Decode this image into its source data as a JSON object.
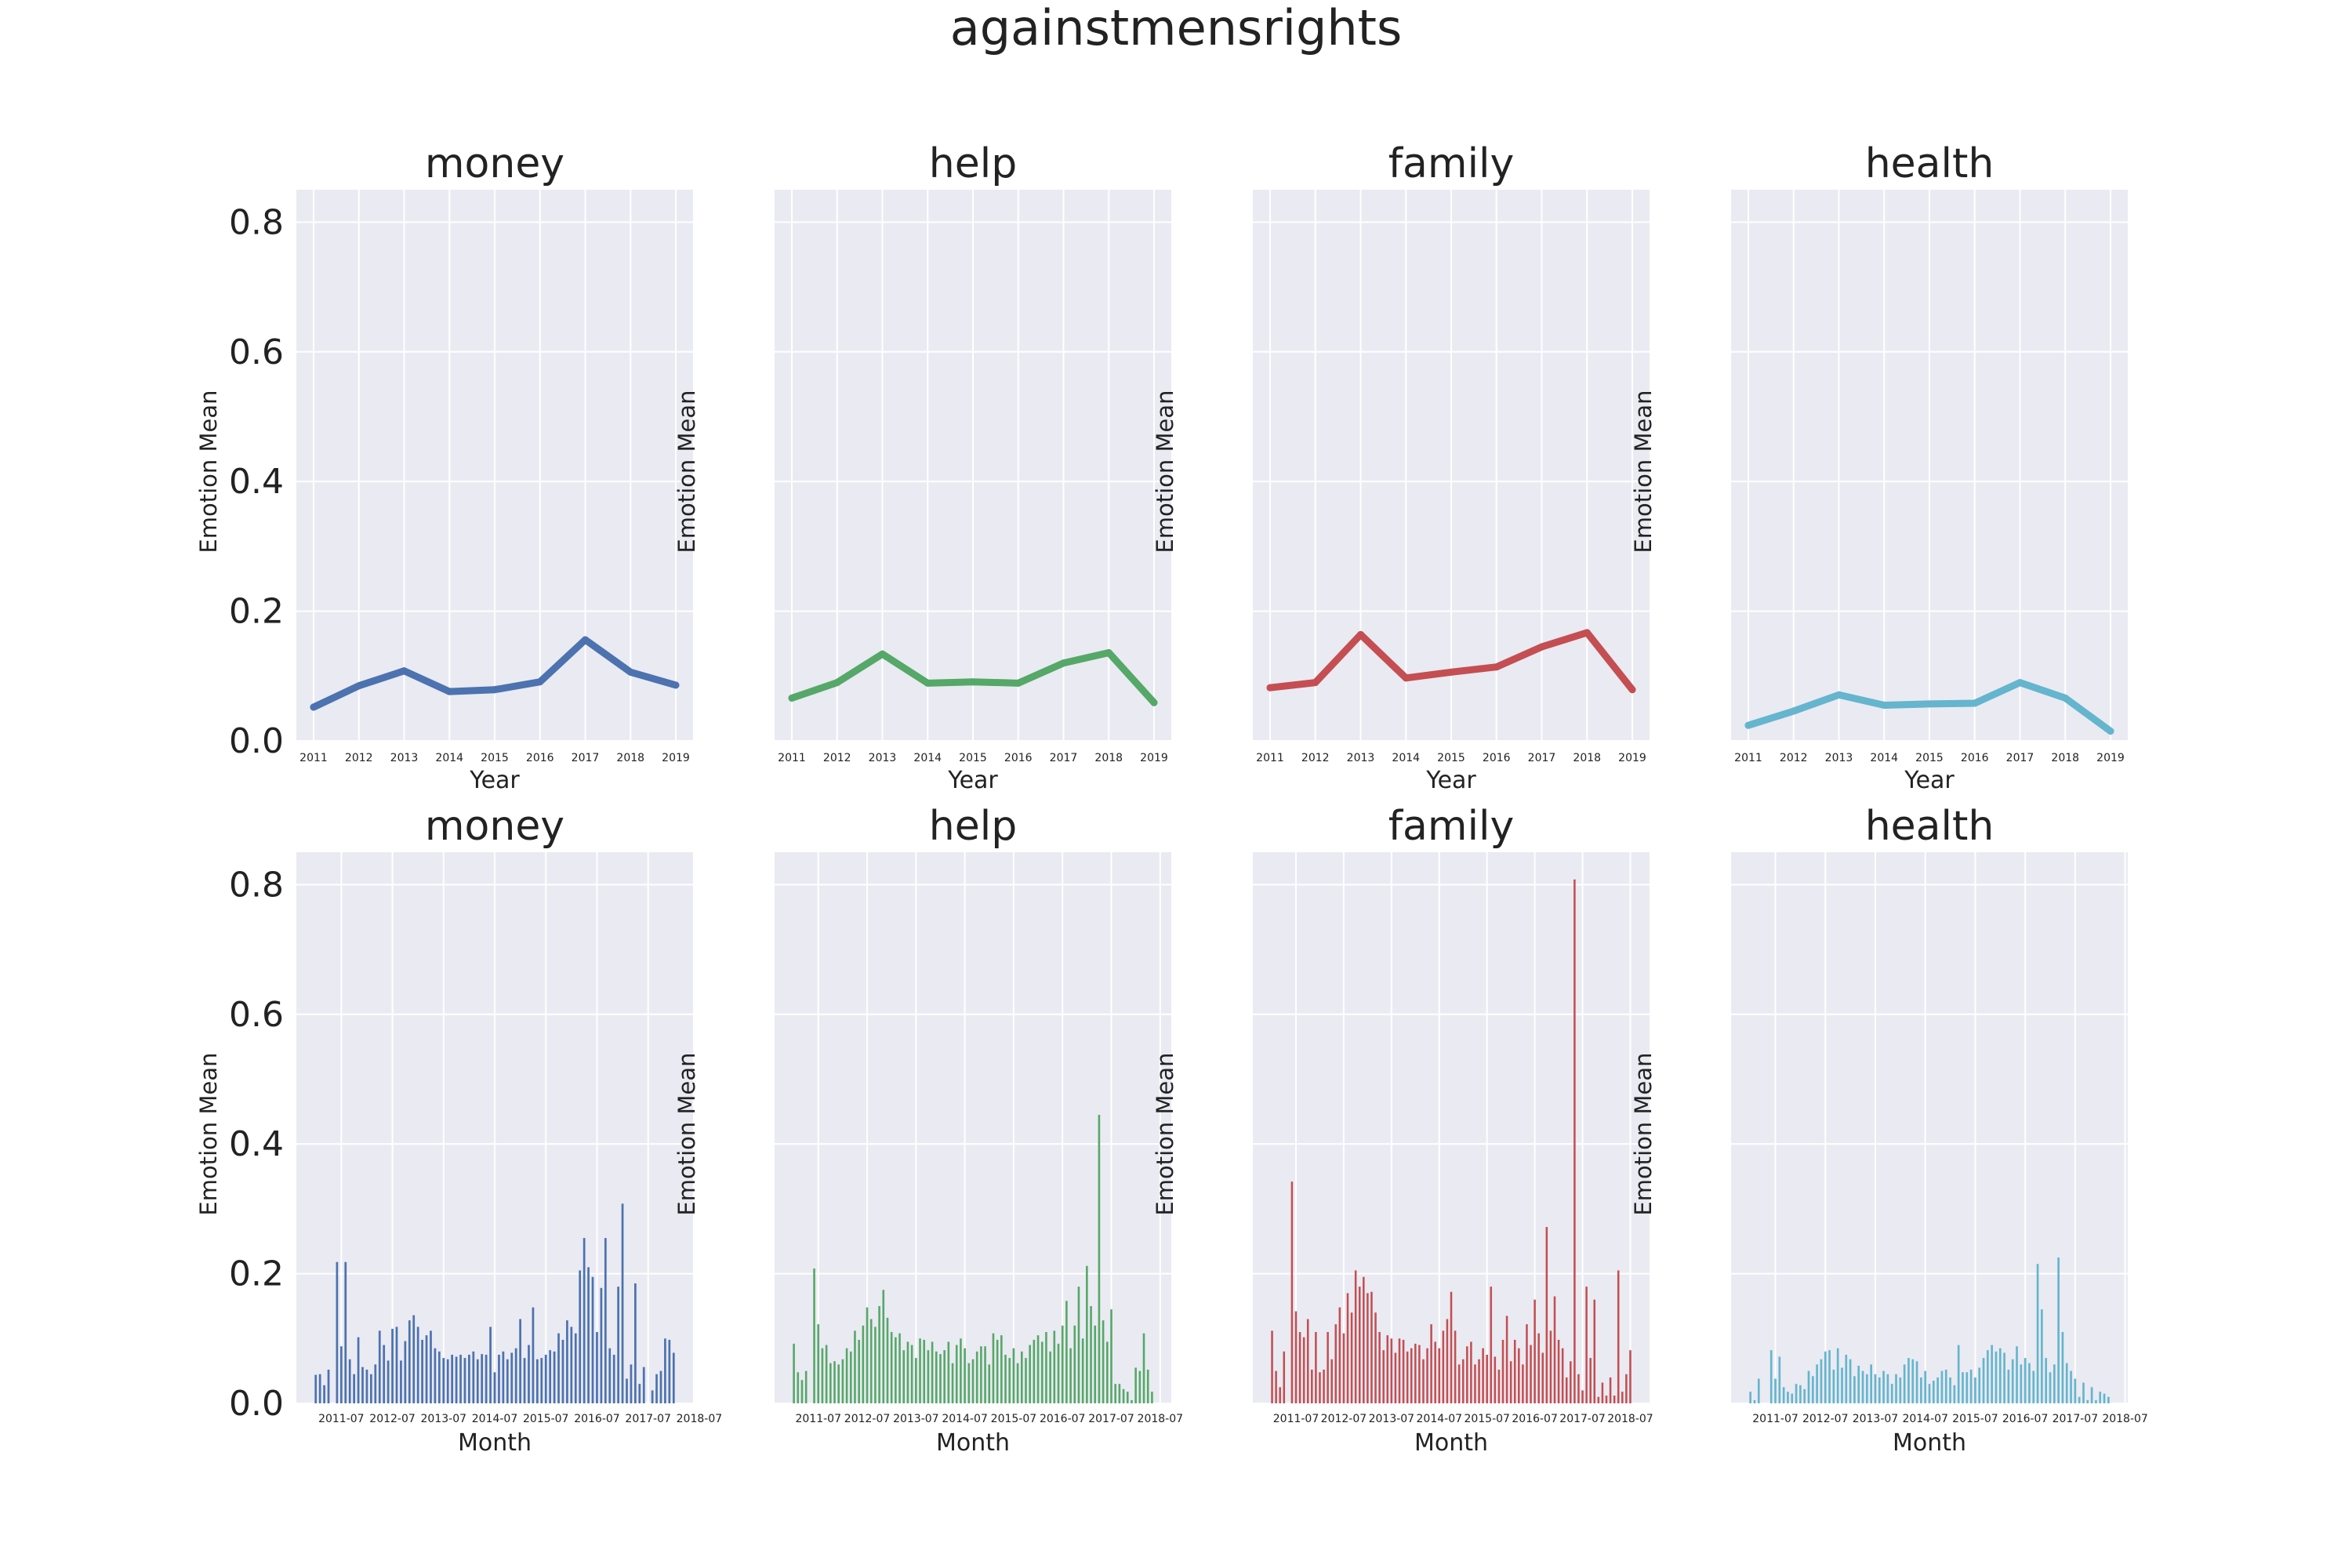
{
  "suptitle": "againstmensrights",
  "colors": {
    "money": "#4c72b0",
    "help": "#55a868",
    "family": "#c44e52",
    "health": "#64b5cd",
    "plot_bg": "#eaeaf2",
    "grid": "#ffffff"
  },
  "chart_data": [
    {
      "type": "line",
      "title": "money",
      "xlabel": "Year",
      "ylabel": "Emotion Mean",
      "series_color": "money",
      "ylim": [
        0,
        0.85
      ],
      "yticks": [
        0.0,
        0.2,
        0.4,
        0.6,
        0.8
      ],
      "ytick_labels": [
        "0.0",
        "0.2",
        "0.4",
        "0.6",
        "0.8"
      ],
      "x": [
        "2011",
        "2012",
        "2013",
        "2014",
        "2015",
        "2016",
        "2017",
        "2018",
        "2019"
      ],
      "y": [
        0.052,
        0.085,
        0.108,
        0.076,
        0.079,
        0.091,
        0.156,
        0.106,
        0.086
      ]
    },
    {
      "type": "line",
      "title": "help",
      "xlabel": "Year",
      "ylabel": "Emotion Mean",
      "series_color": "help",
      "ylim": [
        0,
        0.85
      ],
      "yticks": [
        0.0,
        0.2,
        0.4,
        0.6,
        0.8
      ],
      "ytick_labels": [],
      "x": [
        "2011",
        "2012",
        "2013",
        "2014",
        "2015",
        "2016",
        "2017",
        "2018",
        "2019"
      ],
      "y": [
        0.066,
        0.09,
        0.134,
        0.089,
        0.091,
        0.089,
        0.12,
        0.136,
        0.059
      ]
    },
    {
      "type": "line",
      "title": "family",
      "xlabel": "Year",
      "ylabel": "Emotion Mean",
      "series_color": "family",
      "ylim": [
        0,
        0.85
      ],
      "yticks": [
        0.0,
        0.2,
        0.4,
        0.6,
        0.8
      ],
      "ytick_labels": [],
      "x": [
        "2011",
        "2012",
        "2013",
        "2014",
        "2015",
        "2016",
        "2017",
        "2018",
        "2019"
      ],
      "y": [
        0.082,
        0.09,
        0.164,
        0.097,
        0.106,
        0.114,
        0.145,
        0.167,
        0.079
      ]
    },
    {
      "type": "line",
      "title": "health",
      "xlabel": "Year",
      "ylabel": "Emotion Mean",
      "series_color": "health",
      "ylim": [
        0,
        0.85
      ],
      "yticks": [
        0.0,
        0.2,
        0.4,
        0.6,
        0.8
      ],
      "ytick_labels": [],
      "x": [
        "2011",
        "2012",
        "2013",
        "2014",
        "2015",
        "2016",
        "2017",
        "2018",
        "2019"
      ],
      "y": [
        0.024,
        0.046,
        0.071,
        0.055,
        0.057,
        0.058,
        0.09,
        0.066,
        0.015
      ]
    },
    {
      "type": "bar",
      "title": "money",
      "xlabel": "Month",
      "ylabel": "Emotion Mean",
      "series_color": "money",
      "ylim": [
        0,
        0.85
      ],
      "yticks": [
        0.0,
        0.2,
        0.4,
        0.6,
        0.8
      ],
      "ytick_labels": [
        "0.0",
        "0.2",
        "0.4",
        "0.6",
        "0.8"
      ],
      "xtick_labels": [
        "2011-07",
        "2012-07",
        "2013-07",
        "2014-07",
        "2015-07",
        "2016-07",
        "2017-07",
        "2018-07"
      ],
      "first_month": "2011-01",
      "values": [
        0.044,
        0.045,
        0.028,
        0.052,
        0.0,
        0.218,
        0.088,
        0.218,
        0.068,
        0.045,
        0.102,
        0.056,
        0.052,
        0.045,
        0.06,
        0.112,
        0.09,
        0.066,
        0.115,
        0.118,
        0.066,
        0.096,
        0.128,
        0.136,
        0.118,
        0.098,
        0.105,
        0.112,
        0.085,
        0.08,
        0.07,
        0.068,
        0.075,
        0.072,
        0.075,
        0.07,
        0.075,
        0.08,
        0.068,
        0.076,
        0.075,
        0.118,
        0.048,
        0.075,
        0.08,
        0.068,
        0.078,
        0.085,
        0.13,
        0.07,
        0.09,
        0.148,
        0.068,
        0.07,
        0.075,
        0.082,
        0.08,
        0.108,
        0.098,
        0.128,
        0.118,
        0.108,
        0.205,
        0.255,
        0.21,
        0.195,
        0.11,
        0.178,
        0.255,
        0.085,
        0.075,
        0.18,
        0.308,
        0.038,
        0.06,
        0.185,
        0.03,
        0.056,
        0.0,
        0.02,
        0.045,
        0.05,
        0.1,
        0.098,
        0.078
      ]
    },
    {
      "type": "bar",
      "title": "help",
      "xlabel": "Month",
      "ylabel": "Emotion Mean",
      "series_color": "help",
      "ylim": [
        0,
        0.85
      ],
      "yticks": [
        0.0,
        0.2,
        0.4,
        0.6,
        0.8
      ],
      "ytick_labels": [],
      "xtick_labels": [
        "2011-07",
        "2012-07",
        "2013-07",
        "2014-07",
        "2015-07",
        "2016-07",
        "2017-07",
        "2018-07"
      ],
      "first_month": "2011-01",
      "values": [
        0.092,
        0.048,
        0.036,
        0.05,
        0.0,
        0.208,
        0.122,
        0.085,
        0.09,
        0.062,
        0.065,
        0.06,
        0.068,
        0.085,
        0.08,
        0.112,
        0.098,
        0.12,
        0.148,
        0.13,
        0.118,
        0.15,
        0.175,
        0.132,
        0.11,
        0.102,
        0.108,
        0.082,
        0.095,
        0.09,
        0.07,
        0.1,
        0.098,
        0.082,
        0.095,
        0.08,
        0.076,
        0.082,
        0.095,
        0.062,
        0.09,
        0.1,
        0.085,
        0.062,
        0.068,
        0.08,
        0.088,
        0.088,
        0.06,
        0.108,
        0.098,
        0.105,
        0.075,
        0.07,
        0.085,
        0.062,
        0.08,
        0.07,
        0.09,
        0.098,
        0.105,
        0.095,
        0.11,
        0.08,
        0.112,
        0.092,
        0.12,
        0.158,
        0.085,
        0.12,
        0.18,
        0.1,
        0.212,
        0.15,
        0.12,
        0.445,
        0.128,
        0.095,
        0.145,
        0.03,
        0.03,
        0.022,
        0.018,
        0.005,
        0.055,
        0.05,
        0.108,
        0.052,
        0.018
      ]
    },
    {
      "type": "bar",
      "title": "family",
      "xlabel": "Month",
      "ylabel": "Emotion Mean",
      "series_color": "family",
      "ylim": [
        0,
        0.85
      ],
      "yticks": [
        0.0,
        0.2,
        0.4,
        0.6,
        0.8
      ],
      "ytick_labels": [],
      "xtick_labels": [
        "2011-07",
        "2012-07",
        "2013-07",
        "2014-07",
        "2015-07",
        "2016-07",
        "2017-07",
        "2018-07"
      ],
      "first_month": "2011-01",
      "values": [
        0.112,
        0.05,
        0.025,
        0.08,
        0.0,
        0.342,
        0.142,
        0.11,
        0.102,
        0.13,
        0.052,
        0.11,
        0.048,
        0.052,
        0.11,
        0.068,
        0.122,
        0.148,
        0.108,
        0.17,
        0.14,
        0.205,
        0.18,
        0.195,
        0.17,
        0.172,
        0.14,
        0.11,
        0.082,
        0.105,
        0.1,
        0.078,
        0.1,
        0.098,
        0.08,
        0.085,
        0.092,
        0.09,
        0.068,
        0.085,
        0.122,
        0.095,
        0.085,
        0.112,
        0.13,
        0.172,
        0.112,
        0.06,
        0.068,
        0.088,
        0.095,
        0.06,
        0.068,
        0.085,
        0.075,
        0.18,
        0.072,
        0.052,
        0.098,
        0.135,
        0.065,
        0.098,
        0.085,
        0.06,
        0.122,
        0.09,
        0.16,
        0.108,
        0.078,
        0.272,
        0.112,
        0.165,
        0.098,
        0.085,
        0.04,
        0.065,
        0.808,
        0.045,
        0.02,
        0.18,
        0.07,
        0.16,
        0.01,
        0.032,
        0.012,
        0.04,
        0.012,
        0.205,
        0.018,
        0.045,
        0.082
      ]
    },
    {
      "type": "bar",
      "title": "health",
      "xlabel": "Month",
      "ylabel": "Emotion Mean",
      "series_color": "health",
      "ylim": [
        0,
        0.85
      ],
      "yticks": [
        0.0,
        0.2,
        0.4,
        0.6,
        0.8
      ],
      "ytick_labels": [],
      "xtick_labels": [
        "2011-07",
        "2012-07",
        "2013-07",
        "2014-07",
        "2015-07",
        "2016-07",
        "2017-07",
        "2018-07"
      ],
      "first_month": "2011-01",
      "values": [
        0.018,
        0.005,
        0.038,
        0.0,
        0.0,
        0.082,
        0.038,
        0.072,
        0.025,
        0.018,
        0.015,
        0.03,
        0.028,
        0.022,
        0.05,
        0.042,
        0.06,
        0.068,
        0.08,
        0.082,
        0.052,
        0.085,
        0.055,
        0.075,
        0.068,
        0.042,
        0.058,
        0.05,
        0.045,
        0.06,
        0.045,
        0.04,
        0.05,
        0.045,
        0.03,
        0.045,
        0.04,
        0.06,
        0.07,
        0.068,
        0.065,
        0.04,
        0.05,
        0.03,
        0.035,
        0.04,
        0.05,
        0.052,
        0.04,
        0.028,
        0.09,
        0.048,
        0.048,
        0.052,
        0.04,
        0.055,
        0.07,
        0.082,
        0.09,
        0.08,
        0.085,
        0.078,
        0.052,
        0.068,
        0.088,
        0.06,
        0.07,
        0.062,
        0.05,
        0.215,
        0.145,
        0.07,
        0.048,
        0.06,
        0.225,
        0.11,
        0.062,
        0.05,
        0.038,
        0.01,
        0.032,
        0.005,
        0.025,
        0.005,
        0.018,
        0.015,
        0.01
      ]
    }
  ]
}
